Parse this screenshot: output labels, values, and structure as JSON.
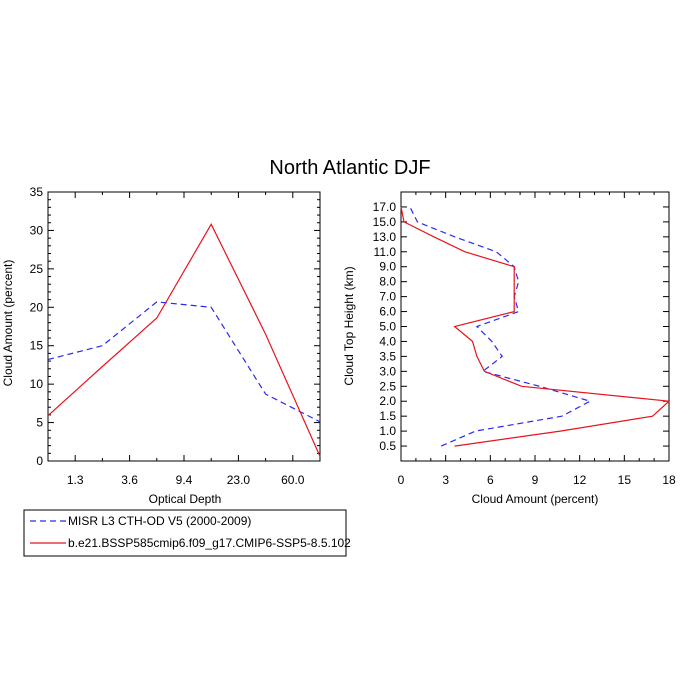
{
  "title": "North Atlantic DJF",
  "colors": {
    "obs": "#2a2af0",
    "model": "#e8141c"
  },
  "chart_data": [
    {
      "type": "line",
      "xlabel": "Optical Depth",
      "ylabel": "Cloud Amount (percent)",
      "ylim": [
        0,
        35
      ],
      "yticks": [
        "0",
        "5",
        "10",
        "15",
        "20",
        "25",
        "30",
        "35"
      ],
      "xtick_labels": [
        "1.3",
        "3.6",
        "9.4",
        "23.0",
        "60.0"
      ],
      "grid": false,
      "series": [
        {
          "name": "MISR L3 CTH-OD V5 (2000-2009)",
          "style": "dashed",
          "values": [
            13.2,
            15.0,
            20.7,
            20.0,
            8.7,
            5.1
          ]
        },
        {
          "name": "b.e21.BSSP585cmip6.f09_g17.CMIP6-SSP5-8.5.102",
          "style": "solid",
          "values": [
            5.9,
            12.3,
            18.6,
            30.8,
            16.5,
            0.6
          ]
        }
      ]
    },
    {
      "type": "line",
      "xlabel": "Cloud Amount (percent)",
      "ylabel": "Cloud Top Height (km)",
      "xlim": [
        0,
        18
      ],
      "xticks": [
        "0",
        "3",
        "6",
        "9",
        "12",
        "15",
        "18"
      ],
      "ylim": [
        0,
        18
      ],
      "yticks": [
        "0.5",
        "1.0",
        "1.5",
        "2.0",
        "2.5",
        "3.0",
        "3.5",
        "4.0",
        "5.0",
        "6.0",
        "7.0",
        "8.0",
        "9.0",
        "11.0",
        "13.0",
        "15.0",
        "17.0"
      ],
      "grid": false,
      "series": [
        {
          "name": "MISR L3 CTH-OD V5 (2000-2009)",
          "style": "dashed",
          "cloud_amount": [
            2.7,
            5.0,
            10.8,
            12.7,
            9.3,
            5.5,
            6.8,
            6.1,
            5.1,
            7.9,
            7.6,
            7.9,
            7.6,
            6.4,
            3.6,
            1.1,
            0.6
          ],
          "height": [
            "0.5",
            "1.0",
            "1.5",
            "2.0",
            "2.5",
            "3.0",
            "3.5",
            "4.0",
            "5.0",
            "6.0",
            "7.0",
            "8.0",
            "9.0",
            "11.0",
            "13.0",
            "15.0",
            "17.0"
          ]
        },
        {
          "name": "b.e21.BSSP585cmip6.f09_g17.CMIP6-SSP5-8.5.102",
          "style": "solid",
          "cloud_amount": [
            3.6,
            10.7,
            16.9,
            18.0,
            8.1,
            5.6,
            5.1,
            4.8,
            3.6,
            7.6,
            7.6,
            7.6,
            7.6,
            4.3,
            2.2,
            0.2,
            0.0
          ],
          "height": [
            "0.5",
            "1.0",
            "1.5",
            "2.0",
            "2.5",
            "3.0",
            "3.5",
            "4.0",
            "5.0",
            "6.0",
            "7.0",
            "8.0",
            "9.0",
            "11.0",
            "13.0",
            "15.0",
            "17.0"
          ]
        }
      ]
    }
  ],
  "legend": {
    "placement": "bottom-left",
    "entries": [
      {
        "label": "MISR L3 CTH-OD V5 (2000-2009)",
        "style": "dashed"
      },
      {
        "label": "b.e21.BSSP585cmip6.f09_g17.CMIP6-SSP5-8.5.102",
        "style": "solid"
      }
    ]
  }
}
